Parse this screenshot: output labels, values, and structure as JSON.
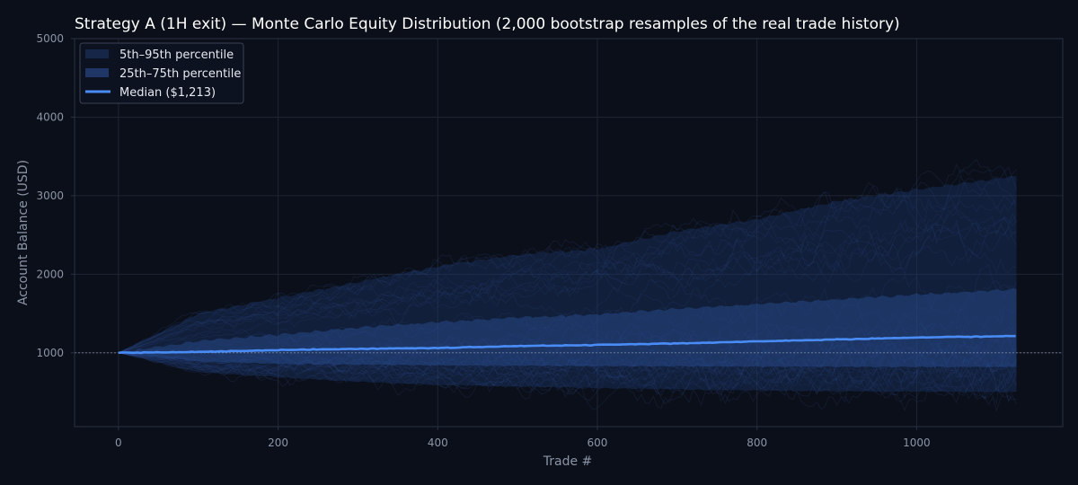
{
  "chart_data": {
    "type": "area",
    "title": "Strategy A (1H exit) — Monte Carlo Equity Distribution (2,000 bootstrap resamples of the real trade history)",
    "xlabel": "Trade #",
    "ylabel": "Account Balance (USD)",
    "xlim": [
      -55,
      1183
    ],
    "ylim": [
      60,
      5000
    ],
    "x_ticks": [
      0,
      200,
      400,
      600,
      800,
      1000
    ],
    "y_ticks": [
      1000,
      2000,
      3000,
      4000,
      5000
    ],
    "grid": true,
    "legend_position": "top-left",
    "reference_line": {
      "y": 1000,
      "style": "dotted"
    },
    "x": [
      0,
      100,
      200,
      300,
      400,
      500,
      600,
      700,
      800,
      900,
      1000,
      1125
    ],
    "series": [
      {
        "name": "5th–95th percentile",
        "kind": "band",
        "lower": [
          1000,
          755,
          690,
          630,
          590,
          570,
          550,
          535,
          520,
          510,
          505,
          500
        ],
        "upper": [
          1000,
          1500,
          1700,
          1900,
          2100,
          2250,
          2320,
          2550,
          2700,
          2930,
          3080,
          3250
        ]
      },
      {
        "name": "25th–75th percentile",
        "kind": "band",
        "lower": [
          1000,
          890,
          860,
          850,
          840,
          835,
          830,
          828,
          825,
          822,
          820,
          820
        ],
        "upper": [
          1000,
          1150,
          1230,
          1320,
          1390,
          1450,
          1490,
          1560,
          1620,
          1680,
          1740,
          1810
        ]
      },
      {
        "name": "Median ($1,213)",
        "kind": "line",
        "values": [
          1000,
          1010,
          1035,
          1050,
          1060,
          1085,
          1100,
          1120,
          1145,
          1170,
          1195,
          1213
        ]
      }
    ],
    "sample_path_count": 40,
    "colors": {
      "background": "#0b0f19",
      "band_outer": "#1e3a70",
      "band_inner": "#2b4f97",
      "median": "#4a8cf5",
      "paths": "#3a5aa0",
      "grid": "#1d2433",
      "tick_text": "#8b95a7",
      "title_text": "#ffffff"
    }
  }
}
